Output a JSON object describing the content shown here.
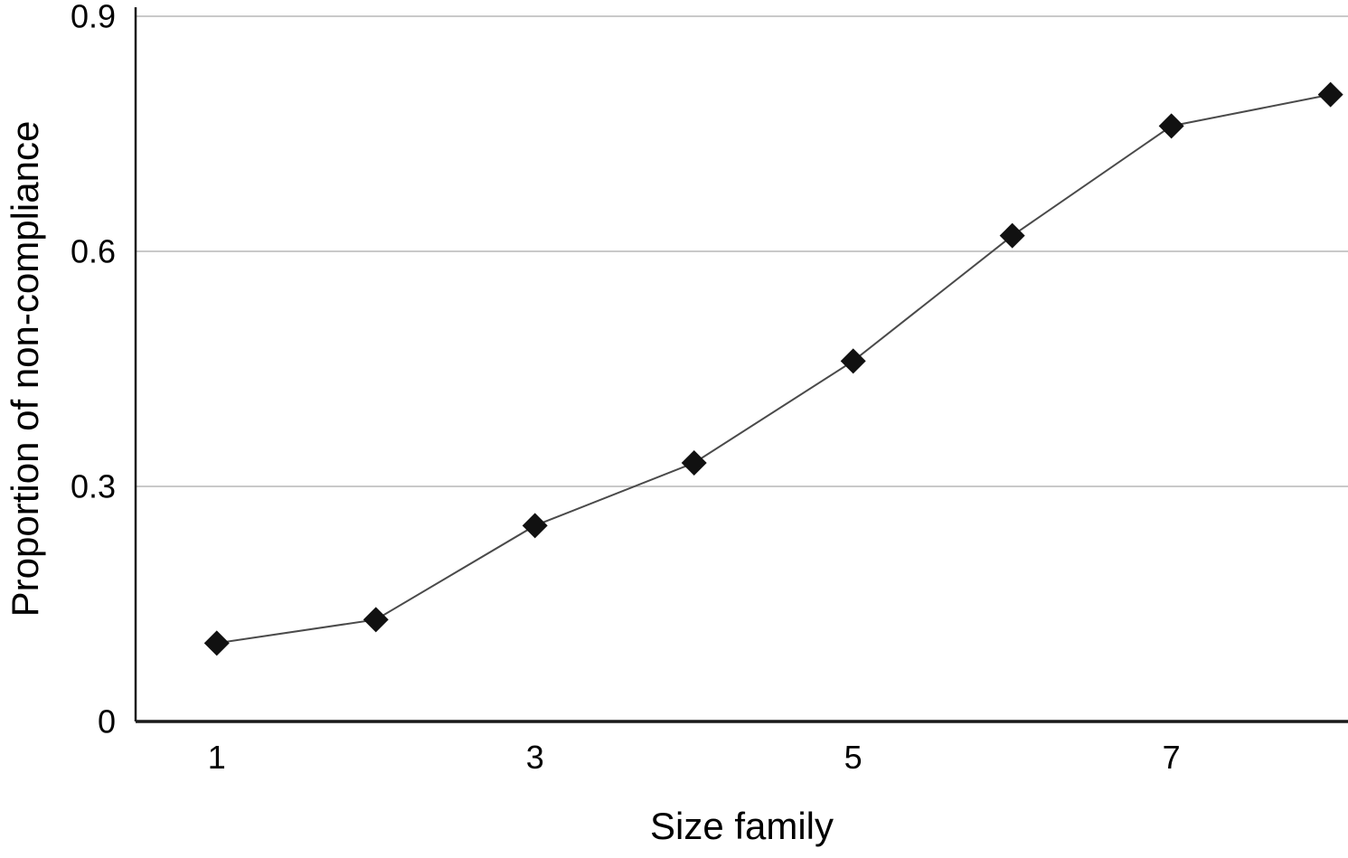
{
  "chart_data": {
    "type": "line",
    "series_name": "Proportion of non-compliance by size family",
    "x": [
      1,
      2,
      3,
      4,
      5,
      6,
      7,
      8
    ],
    "values": [
      0.1,
      0.13,
      0.25,
      0.33,
      0.46,
      0.62,
      0.76,
      0.8
    ],
    "title": "",
    "xlabel": "Size family",
    "ylabel": "Proportion of non-compliance",
    "xlim": [
      0.49,
      8.11
    ],
    "ylim": [
      0,
      0.9
    ],
    "x_ticks": [
      1,
      3,
      5,
      7
    ],
    "y_ticks": [
      0,
      0.3,
      0.6,
      0.9
    ],
    "grid": "horizontal",
    "legend": "none",
    "marker": "diamond",
    "colors": {
      "line": "#4a4a4a",
      "marker": "#111111",
      "grid": "#c9c9c9",
      "axis": "#1a1a1a",
      "background": "#ffffff",
      "text": "#000000"
    }
  }
}
